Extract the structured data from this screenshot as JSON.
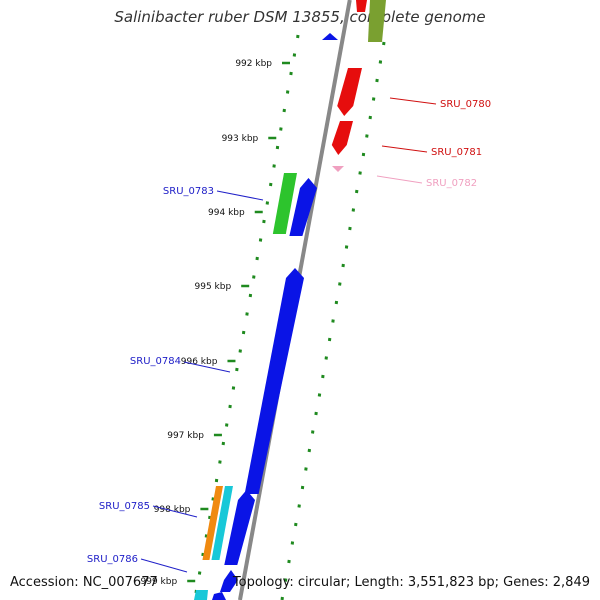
{
  "title": "Salinibacter ruber DSM 13855, complete genome",
  "footer": {
    "accession": "Accession: NC_007677",
    "topology": "Topology: circular; Length: 3,551,823 bp; Genes: 2,849"
  },
  "colors": {
    "backbone": "#888888",
    "tick": "#1f8a1f",
    "forward_gene": "#0a14e6",
    "reverse_gene": "#e60d0d",
    "label_blue": "#2020c8",
    "label_red": "#d01010",
    "label_pink": "#f0a0c0"
  },
  "kbp_labels": [
    "992 kbp",
    "993 kbp",
    "994 kbp",
    "995 kbp",
    "996 kbp",
    "997 kbp",
    "998 kbp",
    "999 kbp"
  ],
  "gene_labels": [
    {
      "id": "SRU_0780",
      "strand": "reverse",
      "color": "#d01010"
    },
    {
      "id": "SRU_0781",
      "strand": "reverse",
      "color": "#d01010"
    },
    {
      "id": "SRU_0782",
      "strand": "reverse",
      "color": "#f0a0c0"
    },
    {
      "id": "SRU_0783",
      "strand": "forward",
      "color": "#2020c8"
    },
    {
      "id": "SRU_0784",
      "strand": "forward",
      "color": "#2020c8"
    },
    {
      "id": "SRU_0785",
      "strand": "forward",
      "color": "#2020c8"
    },
    {
      "id": "SRU_0786",
      "strand": "forward",
      "color": "#2020c8"
    }
  ]
}
